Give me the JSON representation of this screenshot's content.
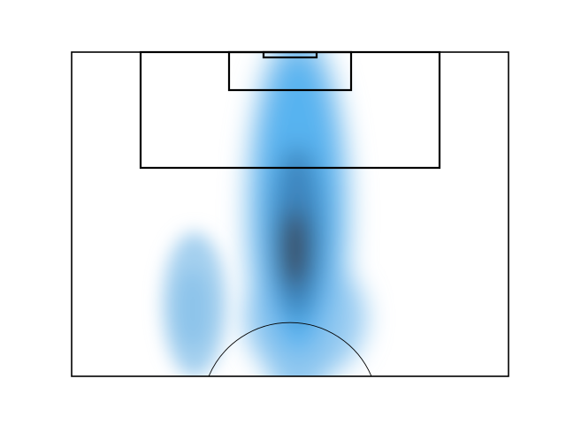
{
  "chart_data": {
    "type": "heatmap",
    "title": "",
    "xlabel": "",
    "ylabel": "",
    "axes_visible": false,
    "background": "pitch-half",
    "colormap": [
      "#ffffff",
      "#9fcdee",
      "#5fb6f0",
      "#2f9ee8",
      "#3a5f86",
      "#3b4a5c"
    ],
    "blobs": [
      {
        "name": "",
        "cx": 0.52,
        "cy": 0.55,
        "sx": 0.09,
        "sy": 0.28,
        "peak": 1.0
      },
      {
        "name": "",
        "cx": 0.28,
        "cy": 0.82,
        "sx": 0.075,
        "sy": 0.18,
        "peak": 0.35
      }
    ],
    "lines": {
      "color": "#000000"
    }
  }
}
